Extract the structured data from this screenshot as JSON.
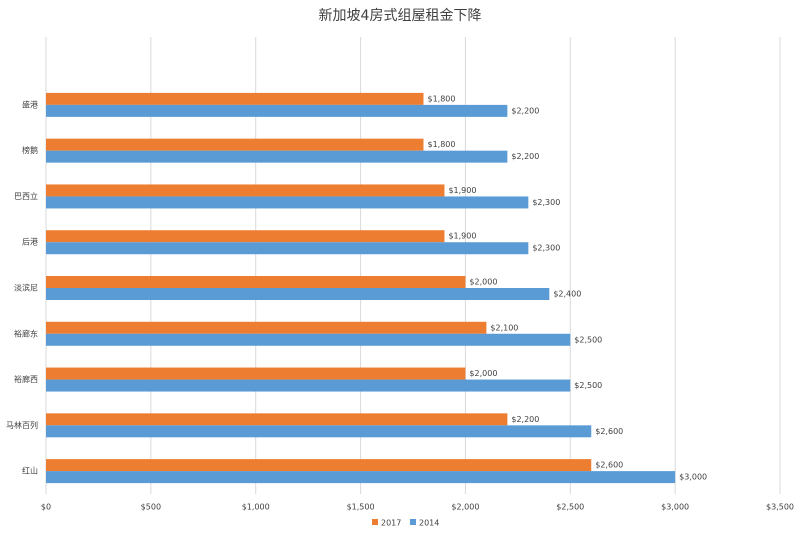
{
  "chart_data": {
    "type": "hbar",
    "title": "新加坡4房式组屋租金下降",
    "categories": [
      "盛港",
      "榜鹅",
      "巴西立",
      "后港",
      "淡滨尼",
      "裕廊东",
      "裕廊西",
      "马林百列",
      "红山"
    ],
    "series": [
      {
        "name": "2017",
        "color": "#ed7d31",
        "values": [
          1800,
          1800,
          1900,
          1900,
          2000,
          2100,
          2000,
          2200,
          2600
        ],
        "value_labels": [
          "$1,800",
          "$1,800",
          "$1,900",
          "$1,900",
          "$2,000",
          "$2,100",
          "$2,000",
          "$2,200",
          "$2,600"
        ]
      },
      {
        "name": "2014",
        "color": "#5b9bd5",
        "values": [
          2200,
          2200,
          2300,
          2300,
          2400,
          2500,
          2500,
          2600,
          3000
        ],
        "value_labels": [
          "$2,200",
          "$2,200",
          "$2,300",
          "$2,300",
          "$2,400",
          "$2,500",
          "$2,500",
          "$2,600",
          "$3,000"
        ]
      }
    ],
    "xlim": [
      0,
      3500
    ],
    "xticks": [
      {
        "value": 0,
        "label": "$0"
      },
      {
        "value": 500,
        "label": "$500"
      },
      {
        "value": 1000,
        "label": "$1,000"
      },
      {
        "value": 1500,
        "label": "$1,500"
      },
      {
        "value": 2000,
        "label": "$2,000"
      },
      {
        "value": 2500,
        "label": "$2,500"
      },
      {
        "value": 3000,
        "label": "$3,000"
      },
      {
        "value": 3500,
        "label": "$3,500"
      }
    ],
    "grid": true,
    "legend": "bottom"
  }
}
